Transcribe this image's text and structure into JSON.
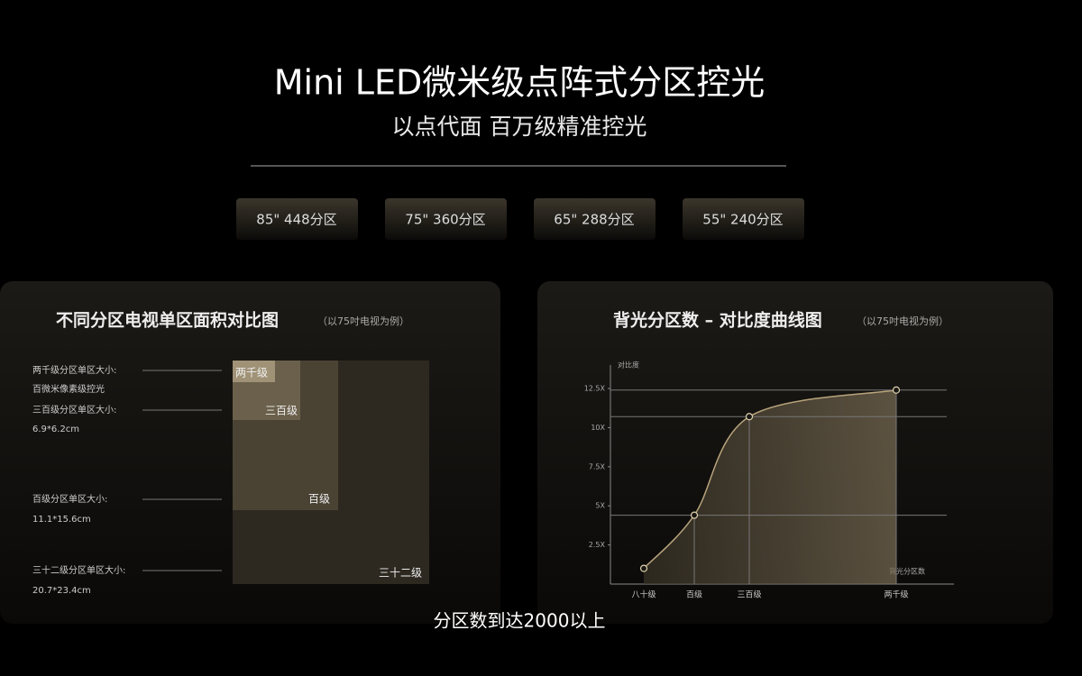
{
  "header": {
    "title": "Mini LED微米级点阵式分区控光",
    "subtitle": "以点代面 百万级精准控光"
  },
  "badges": [
    "85\" 448分区",
    "75\" 360分区",
    "65\" 288分区",
    "55\" 240分区"
  ],
  "area_panel": {
    "title": "不同分区电视单区面积对比图",
    "note": "（以75吋电视为例）",
    "labels": [
      "两千级分区单区大小:",
      "百微米像素级控光",
      "三百级分区单区大小:",
      "6.9*6.2cm",
      "百级分区单区大小:",
      "11.1*15.6cm",
      "三十二级分区单区大小:",
      "20.7*23.4cm"
    ],
    "boxes": [
      "两千级",
      "三百级",
      "百级",
      "三十二级"
    ]
  },
  "chart_data": {
    "type": "line",
    "title": "背光分区数 – 对比度曲线图",
    "note": "（以75吋电视为例）",
    "y_label": "对比度",
    "x_label": "背光分区数",
    "categories": [
      "八十级",
      "百级",
      "三百级",
      "两千级"
    ],
    "values": [
      1.0,
      4.4,
      10.7,
      12.4
    ],
    "color": "#b8a47c",
    "ylim": [
      0,
      14
    ],
    "yticks": [
      {
        "value": 2.5,
        "label": "2.5X"
      },
      {
        "value": 5,
        "label": "5X"
      },
      {
        "value": 7.5,
        "label": "7.5X"
      },
      {
        "value": 10,
        "label": "10X"
      },
      {
        "value": 12.5,
        "label": "12.5X"
      }
    ]
  },
  "caption": "分区数到达2000以上"
}
